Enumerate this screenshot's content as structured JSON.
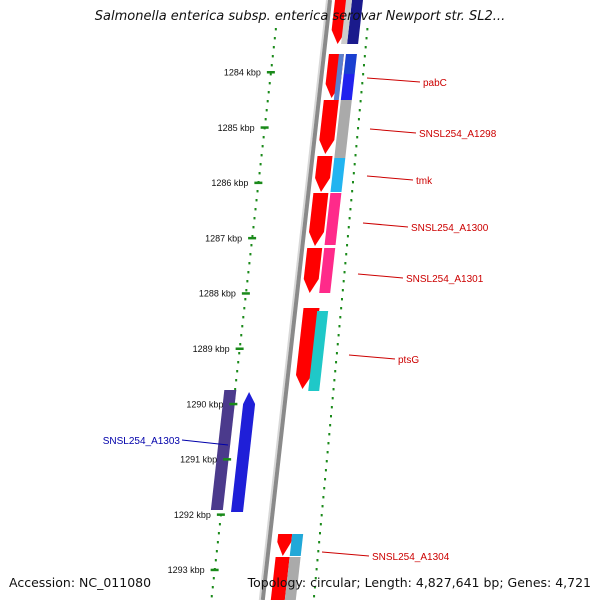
{
  "title": "Salmonella enterica subsp. enterica serovar Newport str. SL2...",
  "footer": {
    "accession": "Accession: NC_011080",
    "summary": "Topology: circular; Length: 4,827,641 bp; Genes: 4,721"
  },
  "colors": {
    "forward_cds": "#ff0000",
    "reverse_cds": "#1f1fd8",
    "reverse_cds_dark": "#4b3a8c",
    "backbone": "#8a8a8a",
    "tick": "#1a8a1a",
    "label_forward": "#cc0000",
    "label_reverse": "#0000aa"
  },
  "ticks": [
    "1284 kbp",
    "1285 kbp",
    "1286 kbp",
    "1287 kbp",
    "1288 kbp",
    "1289 kbp",
    "1290 kbp",
    "1291 kbp",
    "1292 kbp",
    "1293 kbp"
  ],
  "gene_labels": [
    {
      "name": "pabC",
      "strand": "forward"
    },
    {
      "name": "SNSL254_A1298",
      "strand": "forward"
    },
    {
      "name": "tmk",
      "strand": "forward"
    },
    {
      "name": "SNSL254_A1300",
      "strand": "forward"
    },
    {
      "name": "SNSL254_A1301",
      "strand": "forward"
    },
    {
      "name": "ptsG",
      "strand": "forward"
    },
    {
      "name": "SNSL254_A1303",
      "strand": "reverse"
    },
    {
      "name": "SNSL254_A1304",
      "strand": "forward"
    }
  ]
}
